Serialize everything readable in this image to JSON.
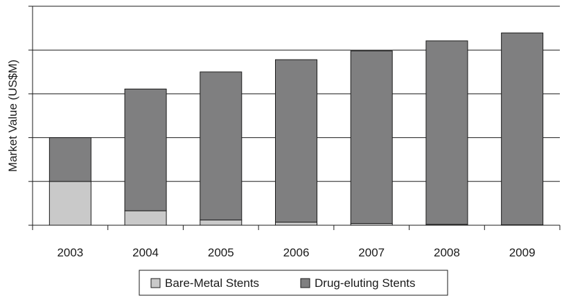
{
  "chart_data": {
    "type": "bar",
    "stacked": true,
    "categories": [
      "2003",
      "2004",
      "2005",
      "2006",
      "2007",
      "2008",
      "2009"
    ],
    "series": [
      {
        "name": "Bare-Metal Stents",
        "values": [
          1.0,
          0.33,
          0.12,
          0.07,
          0.04,
          0.02,
          0.01
        ]
      },
      {
        "name": "Drug-eluting Stents",
        "values": [
          1.0,
          2.78,
          3.38,
          3.71,
          3.94,
          4.19,
          4.38
        ]
      }
    ],
    "ylabel": "Market Value (US$M)",
    "xlabel": "",
    "ylim": [
      0,
      5
    ],
    "yticks": [
      0,
      1,
      2,
      3,
      4,
      5
    ],
    "y_tick_labels_shown": false,
    "grid": "horizontal",
    "legend_position": "bottom",
    "colors": {
      "Bare-Metal Stents": "#c9c9c9",
      "Drug-eluting Stents": "#7f7f80",
      "bar_edge": "#1a1a1a",
      "grid": "#1a1a1a"
    }
  }
}
